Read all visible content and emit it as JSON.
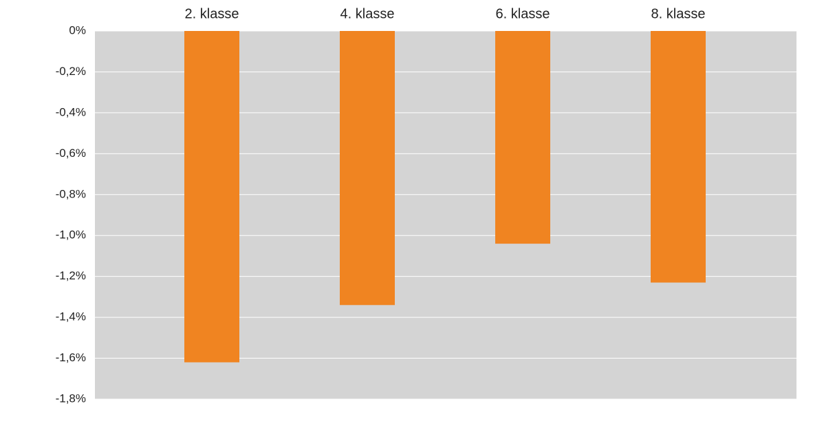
{
  "chart_data": {
    "type": "bar",
    "categories": [
      "2. klasse",
      "4. klasse",
      "6. klasse",
      "8. klasse"
    ],
    "values": [
      -1.62,
      -1.34,
      -1.04,
      -1.23
    ],
    "color": "#f08421",
    "plot_background": "#d4d4d4",
    "grid": true,
    "grid_color": "#ffffff",
    "ylim": [
      -1.8,
      0
    ],
    "yticks": [
      {
        "value": 0,
        "label": "0%"
      },
      {
        "value": -0.2,
        "label": "-0,2%"
      },
      {
        "value": -0.4,
        "label": "-0,4%"
      },
      {
        "value": -0.6,
        "label": "-0,6%"
      },
      {
        "value": -0.8,
        "label": "-0,8%"
      },
      {
        "value": -1.0,
        "label": "-1,0%"
      },
      {
        "value": -1.2,
        "label": "-1,2%"
      },
      {
        "value": -1.4,
        "label": "-1,4%"
      },
      {
        "value": -1.6,
        "label": "-1,6%"
      },
      {
        "value": -1.8,
        "label": "-1,8%"
      }
    ]
  }
}
